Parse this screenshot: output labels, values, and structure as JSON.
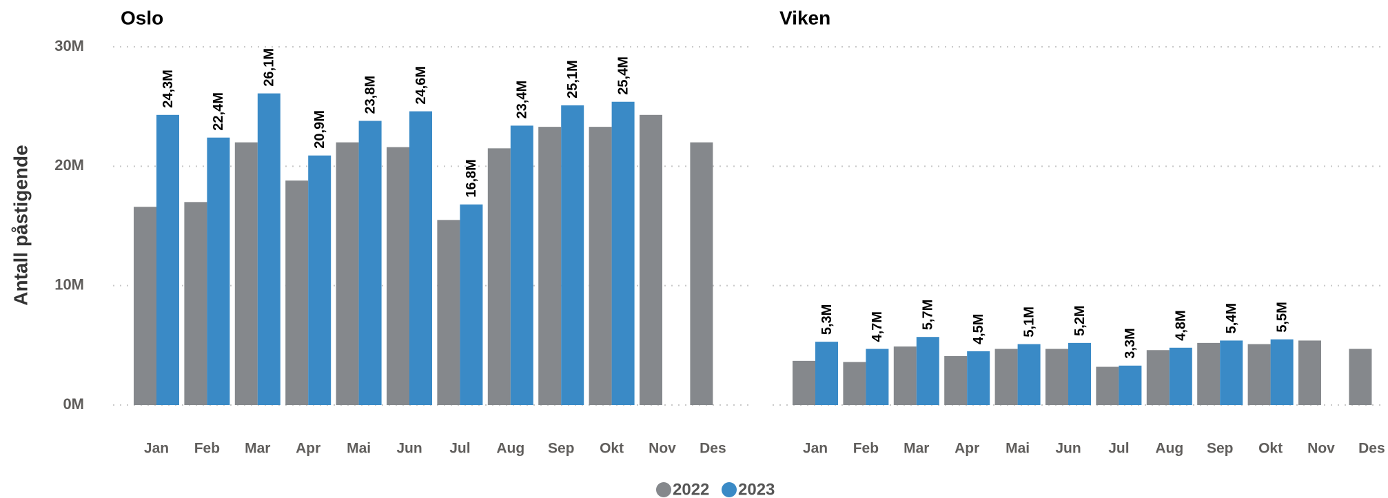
{
  "chart_data": [
    {
      "type": "bar",
      "title": "Oslo",
      "ylabel": "Antall påstigende",
      "categories": [
        "Jan",
        "Feb",
        "Mar",
        "Apr",
        "Mai",
        "Jun",
        "Jul",
        "Aug",
        "Sep",
        "Okt",
        "Nov",
        "Des"
      ],
      "series": [
        {
          "name": "2022",
          "color": "#85888c",
          "values": [
            16600000,
            17000000,
            22000000,
            18800000,
            22000000,
            21600000,
            15500000,
            21500000,
            23300000,
            23300000,
            24300000,
            22000000
          ]
        },
        {
          "name": "2023",
          "color": "#3a8ac6",
          "values": [
            24300000,
            22400000,
            26100000,
            20900000,
            23800000,
            24600000,
            16800000,
            23400000,
            25100000,
            25400000,
            null,
            null
          ],
          "value_labels": [
            "24,3M",
            "22,4M",
            "26,1M",
            "20,9M",
            "23,8M",
            "24,6M",
            "16,8M",
            "23,4M",
            "25,1M",
            "25,4M",
            null,
            null
          ]
        }
      ],
      "ylim": [
        0,
        30000000
      ],
      "yticks": [
        {
          "value": 0,
          "label": "0M"
        },
        {
          "value": 10000000,
          "label": "10M"
        },
        {
          "value": 20000000,
          "label": "20M"
        },
        {
          "value": 30000000,
          "label": "30M"
        }
      ],
      "grid": true
    },
    {
      "type": "bar",
      "title": "Viken",
      "categories": [
        "Jan",
        "Feb",
        "Mar",
        "Apr",
        "Mai",
        "Jun",
        "Jul",
        "Aug",
        "Sep",
        "Okt",
        "Nov",
        "Des"
      ],
      "series": [
        {
          "color": "#85888c",
          "values": [
            3700000,
            3600000,
            4900000,
            4100000,
            4700000,
            4700000,
            3200000,
            4600000,
            5200000,
            5100000,
            5400000,
            4700000
          ]
        },
        {
          "color": "#3a8ac6",
          "values": [
            5300000,
            4700000,
            5700000,
            4500000,
            5100000,
            5200000,
            3300000,
            4800000,
            5400000,
            5500000,
            null,
            null
          ],
          "value_labels": [
            "5,3M",
            "4,7M",
            "5,7M",
            "4,5M",
            "5,1M",
            "5,2M",
            "3,3M",
            "4,8M",
            "5,4M",
            "5,5M",
            null,
            null
          ]
        }
      ],
      "ylim": [
        0,
        30000000
      ],
      "grid": true
    }
  ]
}
